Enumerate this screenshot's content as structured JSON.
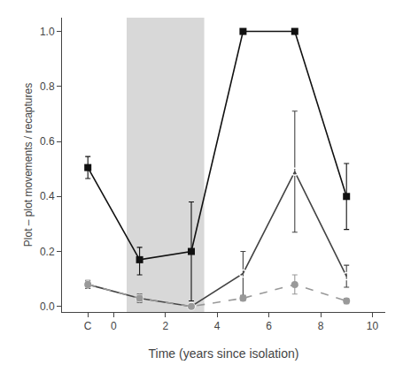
{
  "chart_data": {
    "type": "line",
    "xlabel": "Time (years since isolation)",
    "ylabel": "Plot – plot movements / recaptures",
    "xlim": [
      -2.0,
      10.5
    ],
    "ylim": [
      -0.02,
      1.05
    ],
    "xticks": [
      {
        "value": -1,
        "label": "C"
      },
      0,
      2,
      4,
      6,
      8,
      10
    ],
    "yticks": [
      {
        "value": 0,
        "label": "0.0"
      },
      0.2,
      0.4,
      0.6,
      0.8,
      {
        "value": 1.0,
        "label": "1.0"
      }
    ],
    "grid": false,
    "shade": {
      "x": [
        0.5,
        3.5
      ],
      "color": "#d8d8d8"
    },
    "x": [
      -1,
      1,
      3,
      5,
      7,
      9
    ],
    "series": [
      {
        "color": "#111111",
        "marker": "square",
        "line_style": "solid",
        "values": [
          0.505,
          0.17,
          0.2,
          1.0,
          1.0,
          0.4
        ],
        "error_lo": [
          0.04,
          0.055,
          0.18,
          0.0,
          0.0,
          0.12
        ],
        "error_hi": [
          0.04,
          0.045,
          0.18,
          0.0,
          0.0,
          0.12
        ]
      },
      {
        "color": "#444444",
        "marker": "circle-open",
        "line_style": "solid",
        "values": [
          0.08,
          0.03,
          0.0,
          0.12,
          0.49,
          0.11
        ],
        "error_lo": [
          0.015,
          0.015,
          0.0,
          0.08,
          0.22,
          0.04
        ],
        "error_hi": [
          0.015,
          0.015,
          0.0,
          0.08,
          0.22,
          0.04
        ]
      },
      {
        "color": "#999999",
        "marker": "circle",
        "line_style": "dashed",
        "values": [
          0.08,
          0.03,
          0.0,
          0.03,
          0.08,
          0.02
        ],
        "error_lo": [
          0.01,
          0.01,
          0.005,
          0.01,
          0.035,
          0.01
        ],
        "error_hi": [
          0.01,
          0.01,
          0.005,
          0.01,
          0.035,
          0.01
        ]
      }
    ]
  }
}
